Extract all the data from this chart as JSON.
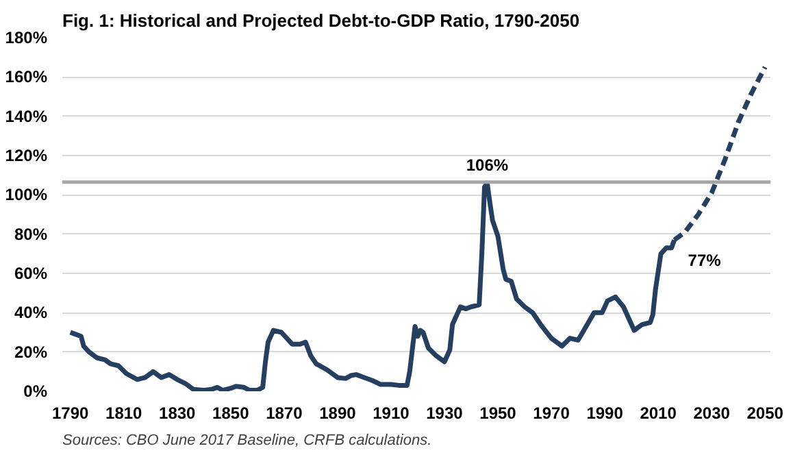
{
  "chart_data": {
    "type": "line",
    "title": "Fig. 1: Historical and Projected Debt-to-GDP Ratio, 1790-2050",
    "annotations": [
      {
        "text": "106%",
        "x": 1946,
        "y": 106
      },
      {
        "text": "77%",
        "x": 2016,
        "y": 77
      },
      "Sources: CBO June 2017 Baseline, CRFB calculations."
    ],
    "series": [
      {
        "color": "#243f60",
        "line_style": "solid",
        "x": [
          1790,
          1792,
          1794,
          1795,
          1797,
          1800,
          1803,
          1805,
          1808,
          1811,
          1815,
          1818,
          1821,
          1824,
          1827,
          1830,
          1833,
          1836,
          1840,
          1843,
          1845,
          1847,
          1850,
          1852,
          1855,
          1857,
          1860,
          1862,
          1863,
          1864,
          1866,
          1869,
          1873,
          1876,
          1878,
          1880,
          1882,
          1886,
          1890,
          1893,
          1895,
          1897,
          1900,
          1903,
          1906,
          1910,
          1913,
          1916,
          1917,
          1919,
          1920,
          1921,
          1922,
          1924,
          1927,
          1930,
          1932,
          1933,
          1935,
          1936,
          1938,
          1940,
          1943,
          1944,
          1945,
          1946,
          1947,
          1948,
          1950,
          1952,
          1953,
          1955,
          1957,
          1960,
          1963,
          1966,
          1970,
          1974,
          1977,
          1980,
          1983,
          1986,
          1989,
          1991,
          1994,
          1997,
          2000,
          2001,
          2004,
          2007,
          2008,
          2009,
          2011,
          2013,
          2015,
          2016
        ],
        "values": [
          30,
          29,
          28,
          23,
          20,
          17,
          16,
          14,
          13,
          9,
          6,
          7,
          10,
          7,
          8.5,
          6,
          4,
          1,
          0.5,
          1,
          2,
          0.5,
          1.5,
          2.5,
          2,
          0.5,
          0.5,
          2,
          15,
          25,
          31,
          30,
          24,
          24,
          25,
          18,
          14,
          11,
          7,
          6.5,
          8,
          8.5,
          7,
          5.5,
          3.5,
          3.5,
          3,
          3,
          10,
          33,
          28,
          31,
          30,
          22,
          18,
          15,
          21,
          34,
          40,
          43,
          42,
          43,
          44,
          70,
          104,
          106,
          96,
          87,
          79,
          62,
          57,
          56,
          47,
          43,
          40,
          34,
          27,
          23,
          27,
          26,
          33,
          40,
          40,
          46,
          48,
          43,
          34,
          31,
          34,
          35,
          39,
          52,
          70,
          73,
          73,
          77
        ]
      },
      {
        "color": "#243f60",
        "line_style": "dashed",
        "x": [
          2016,
          2020,
          2025,
          2030,
          2035,
          2040,
          2045,
          2050
        ],
        "values": [
          77,
          81,
          90,
          101,
          118,
          137,
          152,
          165
        ]
      }
    ],
    "xlim": [
      1787,
      2052
    ],
    "xticks": [
      1790,
      1810,
      1830,
      1850,
      1870,
      1890,
      1910,
      1930,
      1950,
      1970,
      1990,
      2010,
      2030,
      2050
    ],
    "ylim": [
      0,
      180
    ],
    "yticks": [
      {
        "value": 0,
        "label": "0%"
      },
      {
        "value": 20,
        "label": "20%"
      },
      {
        "value": 40,
        "label": "40%"
      },
      {
        "value": 60,
        "label": "60%"
      },
      {
        "value": 80,
        "label": "80%"
      },
      {
        "value": 100,
        "label": "100%"
      },
      {
        "value": 120,
        "label": "120%"
      },
      {
        "value": 140,
        "label": "140%"
      },
      {
        "value": 160,
        "label": "160%"
      },
      {
        "value": 180,
        "label": "180%"
      }
    ],
    "ref_lines": [
      {
        "axis": "y",
        "value": 106.5,
        "color": "#a6a6a6"
      }
    ],
    "grid": "y",
    "marker": "none"
  }
}
